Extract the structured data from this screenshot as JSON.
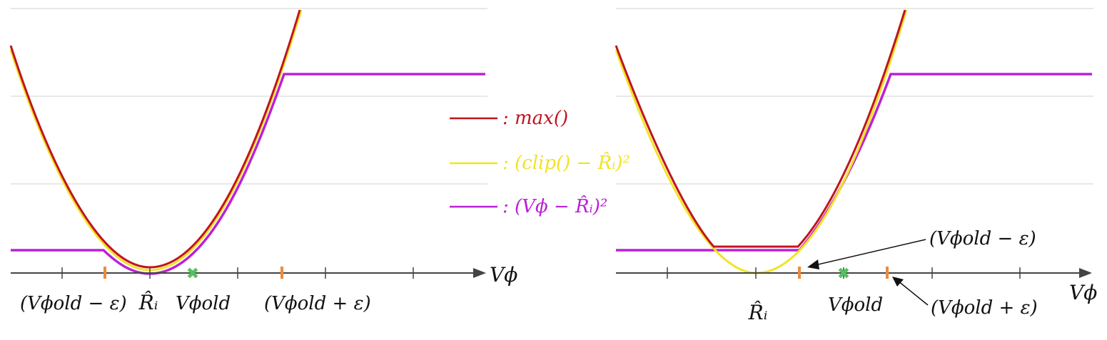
{
  "colors": {
    "max": "#c0141e",
    "clip": "#f2e325",
    "vphi": "#bb20d8",
    "axis": "#444444",
    "grid": "#d2d2d2",
    "tick_orange": "#ee8a3c",
    "x_green": "#55c060"
  },
  "legend": {
    "items": [
      {
        "key": "max",
        "text": ": max()"
      },
      {
        "key": "clip",
        "text": ": (clip() − R̂ᵢ)²"
      },
      {
        "key": "vphi",
        "text": ": (Vϕ − R̂ᵢ)²"
      }
    ]
  },
  "left_panel": {
    "axis_label": "Vϕ",
    "labels": {
      "old_minus_eps": "(Vϕold − ε)",
      "r_hat": "R̂ᵢ",
      "v_old": "Vϕold",
      "old_plus_eps": "(Vϕold + ε)"
    }
  },
  "right_panel": {
    "axis_label": "Vϕ",
    "labels": {
      "old_minus_eps": "(Vϕold − ε)",
      "r_hat": "R̂ᵢ",
      "v_old": "Vϕold",
      "old_plus_eps": "(Vϕold + ε)"
    }
  },
  "markers": {
    "v_old": "✖"
  }
}
